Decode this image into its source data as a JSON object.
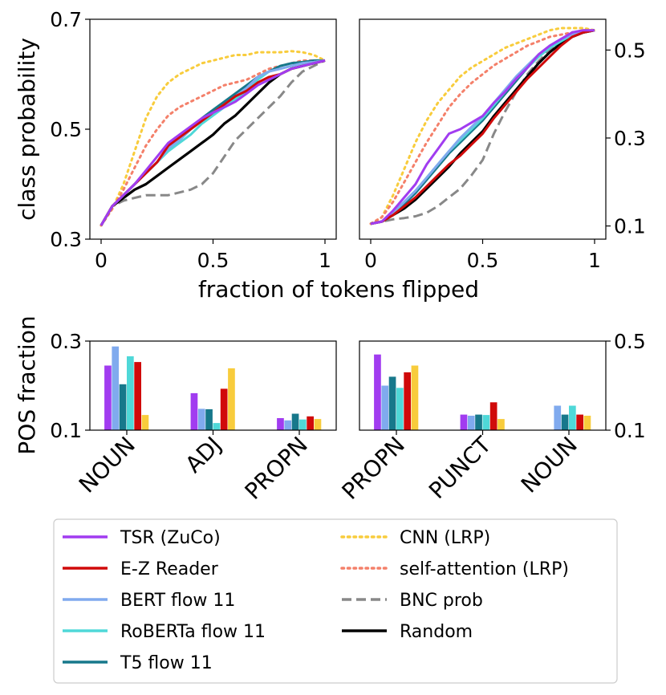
{
  "colors": {
    "TSR (ZuCo)": "#a13cf0",
    "E-Z Reader": "#d00a0a",
    "BERT flow 11": "#80aaee",
    "RoBERTa flow 11": "#4fd8d8",
    "T5 flow 11": "#17788b",
    "CNN (LRP)": "#f8cc3c",
    "self-attention (LRP)": "#f4806a",
    "BNC prob": "#888888",
    "Random": "#000000"
  },
  "legend": {
    "col1": [
      "TSR (ZuCo)",
      "E-Z Reader",
      "BERT flow 11",
      "RoBERTa flow 11",
      "T5 flow 11"
    ],
    "col2": [
      "CNN (LRP)",
      "self-attention (LRP)",
      "BNC prob",
      "Random"
    ],
    "styles": {
      "TSR (ZuCo)": "solid",
      "E-Z Reader": "solid",
      "BERT flow 11": "solid",
      "RoBERTa flow 11": "solid",
      "T5 flow 11": "solid",
      "CNN (LRP)": "dotted",
      "self-attention (LRP)": "dotted",
      "BNC prob": "dashed",
      "Random": "solid"
    }
  },
  "labels": {
    "top_ylabel": "class probability",
    "top_xlabel": "fraction of tokens flipped",
    "bottom_ylabel": "POS fraction"
  },
  "chart_data": [
    {
      "type": "line",
      "panel": "top-left",
      "xlabel": "fraction of tokens flipped",
      "ylabel": "class probability",
      "xlim": [
        0,
        1
      ],
      "ylim": [
        0.3,
        0.7
      ],
      "xticks": [
        "0",
        "0.5",
        "1"
      ],
      "yticks": [
        "0.3",
        "0.5",
        "0.7"
      ],
      "yaxis_side": "left",
      "x": [
        0,
        0.05,
        0.1,
        0.15,
        0.2,
        0.25,
        0.3,
        0.35,
        0.4,
        0.45,
        0.5,
        0.55,
        0.6,
        0.65,
        0.7,
        0.75,
        0.8,
        0.85,
        0.9,
        0.95,
        1.0
      ],
      "series": [
        {
          "name": "CNN (LRP)",
          "style": "dotted",
          "values": [
            0.325,
            0.355,
            0.4,
            0.46,
            0.52,
            0.56,
            0.585,
            0.6,
            0.61,
            0.62,
            0.625,
            0.63,
            0.635,
            0.635,
            0.64,
            0.64,
            0.64,
            0.642,
            0.64,
            0.635,
            0.625
          ]
        },
        {
          "name": "self-attention (LRP)",
          "style": "dotted",
          "values": [
            0.325,
            0.355,
            0.39,
            0.43,
            0.47,
            0.5,
            0.525,
            0.54,
            0.55,
            0.56,
            0.57,
            0.58,
            0.585,
            0.59,
            0.6,
            0.61,
            0.615,
            0.62,
            0.625,
            0.625,
            0.625
          ]
        },
        {
          "name": "BNC prob",
          "style": "dashed",
          "values": [
            0.325,
            0.36,
            0.37,
            0.375,
            0.38,
            0.38,
            0.38,
            0.385,
            0.39,
            0.4,
            0.42,
            0.45,
            0.48,
            0.5,
            0.52,
            0.54,
            0.56,
            0.585,
            0.605,
            0.615,
            0.625
          ]
        },
        {
          "name": "Random",
          "style": "solid",
          "values": [
            0.325,
            0.36,
            0.375,
            0.39,
            0.4,
            0.415,
            0.43,
            0.445,
            0.46,
            0.475,
            0.49,
            0.51,
            0.525,
            0.545,
            0.565,
            0.585,
            0.6,
            0.61,
            0.615,
            0.62,
            0.625
          ]
        },
        {
          "name": "T5 flow 11",
          "style": "solid",
          "values": [
            0.325,
            0.36,
            0.38,
            0.4,
            0.42,
            0.44,
            0.465,
            0.48,
            0.5,
            0.52,
            0.535,
            0.55,
            0.565,
            0.58,
            0.595,
            0.605,
            0.615,
            0.62,
            0.622,
            0.625,
            0.625
          ]
        },
        {
          "name": "RoBERTa flow 11",
          "style": "solid",
          "values": [
            0.325,
            0.36,
            0.38,
            0.4,
            0.42,
            0.44,
            0.46,
            0.475,
            0.49,
            0.51,
            0.525,
            0.54,
            0.555,
            0.57,
            0.59,
            0.605,
            0.61,
            0.615,
            0.62,
            0.622,
            0.625
          ]
        },
        {
          "name": "BERT flow 11",
          "style": "solid",
          "values": [
            0.325,
            0.36,
            0.38,
            0.4,
            0.42,
            0.44,
            0.465,
            0.48,
            0.5,
            0.515,
            0.53,
            0.545,
            0.56,
            0.575,
            0.595,
            0.605,
            0.61,
            0.615,
            0.62,
            0.622,
            0.625
          ]
        },
        {
          "name": "E-Z Reader",
          "style": "solid",
          "values": [
            0.325,
            0.36,
            0.38,
            0.4,
            0.42,
            0.44,
            0.47,
            0.485,
            0.5,
            0.515,
            0.53,
            0.545,
            0.56,
            0.57,
            0.585,
            0.595,
            0.6,
            0.61,
            0.615,
            0.62,
            0.625
          ]
        },
        {
          "name": "TSR (ZuCo)",
          "style": "solid",
          "values": [
            0.325,
            0.36,
            0.38,
            0.4,
            0.425,
            0.45,
            0.475,
            0.49,
            0.505,
            0.52,
            0.53,
            0.54,
            0.55,
            0.565,
            0.58,
            0.59,
            0.6,
            0.61,
            0.615,
            0.62,
            0.625
          ]
        }
      ]
    },
    {
      "type": "line",
      "panel": "top-right",
      "xlabel": "fraction of tokens flipped",
      "xlim": [
        0,
        1
      ],
      "ylim": [
        0.07,
        0.57
      ],
      "xticks": [
        "0",
        "0.5",
        "1"
      ],
      "yticks": [
        "0.1",
        "0.3",
        "0.5"
      ],
      "yaxis_side": "right",
      "x": [
        0,
        0.05,
        0.1,
        0.15,
        0.2,
        0.25,
        0.3,
        0.35,
        0.4,
        0.45,
        0.5,
        0.55,
        0.6,
        0.65,
        0.7,
        0.75,
        0.8,
        0.85,
        0.9,
        0.95,
        1.0
      ],
      "series": [
        {
          "name": "CNN (LRP)",
          "style": "dotted",
          "values": [
            0.105,
            0.12,
            0.17,
            0.23,
            0.29,
            0.34,
            0.38,
            0.41,
            0.44,
            0.46,
            0.475,
            0.49,
            0.505,
            0.515,
            0.525,
            0.535,
            0.545,
            0.55,
            0.55,
            0.55,
            0.545
          ]
        },
        {
          "name": "self-attention (LRP)",
          "style": "dotted",
          "values": [
            0.105,
            0.12,
            0.155,
            0.2,
            0.245,
            0.29,
            0.33,
            0.37,
            0.4,
            0.425,
            0.445,
            0.465,
            0.48,
            0.495,
            0.51,
            0.52,
            0.53,
            0.535,
            0.54,
            0.545,
            0.545
          ]
        },
        {
          "name": "BNC prob",
          "style": "dashed",
          "values": [
            0.105,
            0.11,
            0.115,
            0.118,
            0.122,
            0.13,
            0.145,
            0.165,
            0.185,
            0.215,
            0.25,
            0.31,
            0.36,
            0.405,
            0.445,
            0.475,
            0.5,
            0.515,
            0.53,
            0.54,
            0.545
          ]
        },
        {
          "name": "Random",
          "style": "solid",
          "values": [
            0.105,
            0.11,
            0.125,
            0.14,
            0.16,
            0.185,
            0.21,
            0.235,
            0.265,
            0.29,
            0.315,
            0.35,
            0.38,
            0.41,
            0.44,
            0.47,
            0.495,
            0.515,
            0.53,
            0.54,
            0.545
          ]
        },
        {
          "name": "T5 flow 11",
          "style": "solid",
          "values": [
            0.105,
            0.11,
            0.125,
            0.15,
            0.175,
            0.205,
            0.235,
            0.265,
            0.29,
            0.315,
            0.34,
            0.37,
            0.4,
            0.43,
            0.46,
            0.485,
            0.505,
            0.52,
            0.535,
            0.542,
            0.545
          ]
        },
        {
          "name": "RoBERTa flow 11",
          "style": "solid",
          "values": [
            0.105,
            0.11,
            0.13,
            0.155,
            0.18,
            0.21,
            0.24,
            0.27,
            0.295,
            0.32,
            0.345,
            0.375,
            0.405,
            0.435,
            0.46,
            0.485,
            0.505,
            0.52,
            0.535,
            0.542,
            0.545
          ]
        },
        {
          "name": "BERT flow 11",
          "style": "solid",
          "values": [
            0.105,
            0.11,
            0.13,
            0.155,
            0.18,
            0.21,
            0.24,
            0.27,
            0.3,
            0.325,
            0.35,
            0.38,
            0.41,
            0.44,
            0.465,
            0.49,
            0.51,
            0.525,
            0.535,
            0.542,
            0.545
          ]
        },
        {
          "name": "E-Z Reader",
          "style": "solid",
          "values": [
            0.105,
            0.11,
            0.125,
            0.145,
            0.165,
            0.19,
            0.215,
            0.24,
            0.26,
            0.285,
            0.31,
            0.345,
            0.375,
            0.405,
            0.435,
            0.46,
            0.485,
            0.51,
            0.53,
            0.54,
            0.545
          ]
        },
        {
          "name": "TSR (ZuCo)",
          "style": "solid",
          "values": [
            0.105,
            0.11,
            0.135,
            0.165,
            0.195,
            0.24,
            0.275,
            0.31,
            0.32,
            0.335,
            0.35,
            0.38,
            0.405,
            0.435,
            0.46,
            0.49,
            0.51,
            0.525,
            0.54,
            0.545,
            0.545
          ]
        }
      ]
    },
    {
      "type": "bar",
      "panel": "bottom-left",
      "ylabel": "POS fraction",
      "ylim": [
        0.1,
        0.3
      ],
      "yticks": [
        "0.1",
        "0.3"
      ],
      "yaxis_side": "left",
      "categories": [
        "NOUN",
        "ADJ",
        "PROPN"
      ],
      "series": [
        {
          "name": "TSR (ZuCo)",
          "values": [
            0.245,
            0.183,
            0.127
          ]
        },
        {
          "name": "BERT flow 11",
          "values": [
            0.288,
            0.148,
            0.122
          ]
        },
        {
          "name": "T5 flow 11",
          "values": [
            0.203,
            0.147,
            0.137
          ]
        },
        {
          "name": "RoBERTa flow 11",
          "values": [
            0.266,
            0.116,
            0.124
          ]
        },
        {
          "name": "E-Z Reader",
          "values": [
            0.253,
            0.193,
            0.131
          ]
        },
        {
          "name": "CNN (LRP)",
          "values": [
            0.134,
            0.239,
            0.125
          ]
        }
      ]
    },
    {
      "type": "bar",
      "panel": "bottom-right",
      "ylim": [
        0.1,
        0.5
      ],
      "yticks": [
        "0.1",
        "0.5"
      ],
      "yaxis_side": "right",
      "categories": [
        "PROPN",
        "PUNCT",
        "NOUN"
      ],
      "series": [
        {
          "name": "TSR (ZuCo)",
          "values": [
            0.44,
            0.17,
            0.1
          ]
        },
        {
          "name": "BERT flow 11",
          "values": [
            0.3,
            0.165,
            0.21
          ]
        },
        {
          "name": "T5 flow 11",
          "values": [
            0.34,
            0.17,
            0.17
          ]
        },
        {
          "name": "RoBERTa flow 11",
          "values": [
            0.29,
            0.168,
            0.21
          ]
        },
        {
          "name": "E-Z Reader",
          "values": [
            0.36,
            0.225,
            0.17
          ]
        },
        {
          "name": "CNN (LRP)",
          "values": [
            0.39,
            0.15,
            0.165
          ]
        }
      ]
    }
  ]
}
